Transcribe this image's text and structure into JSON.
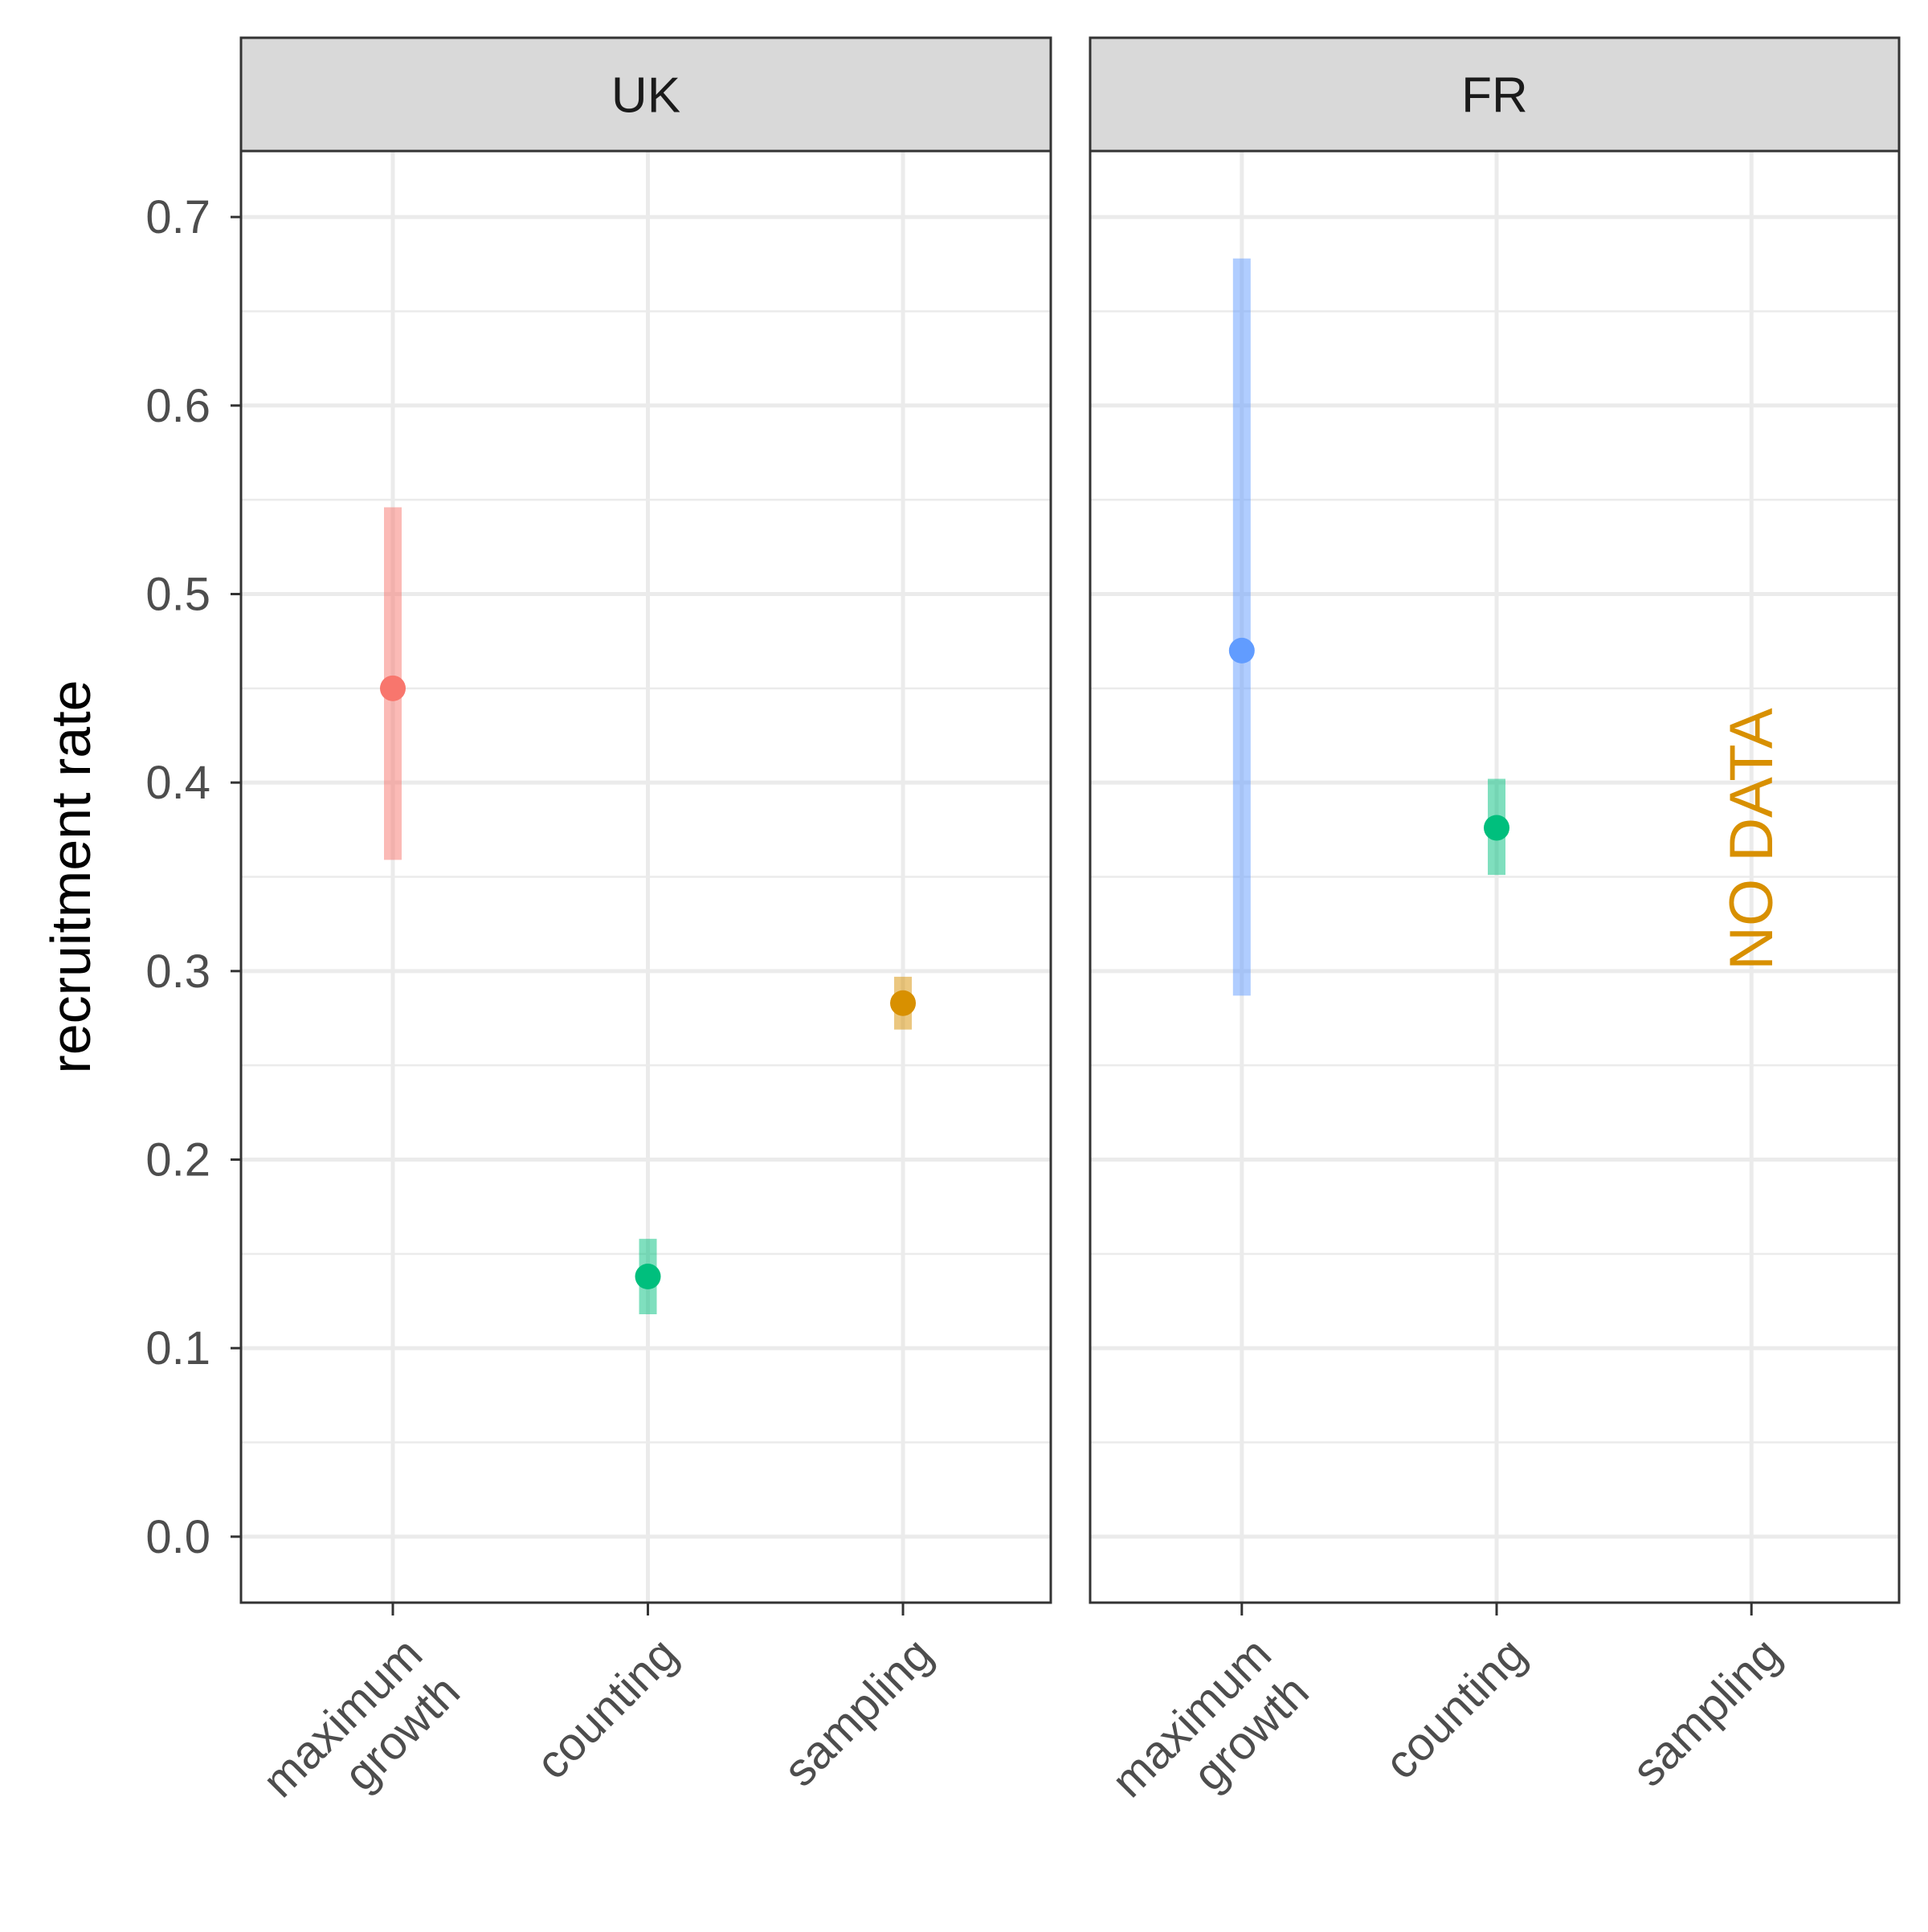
{
  "chart_data": {
    "type": "pointrange",
    "ylabel": "recruitment rate",
    "xlabel": "",
    "ylim": [
      -0.035,
      0.735
    ],
    "y_ticks": [
      0.0,
      0.1,
      0.2,
      0.3,
      0.4,
      0.5,
      0.6,
      0.7
    ],
    "y_tick_labels": [
      "0.0",
      "0.1",
      "0.2",
      "0.3",
      "0.4",
      "0.5",
      "0.6",
      "0.7"
    ],
    "categories": [
      "maximum\ngrowth",
      "counting",
      "sampling"
    ],
    "grid": true,
    "legend": "none",
    "panels": [
      {
        "title": "UK",
        "points": [
          {
            "category": "maximum\ngrowth",
            "y": 0.45,
            "ymin": 0.359,
            "ymax": 0.546,
            "color": "#F8766D"
          },
          {
            "category": "counting",
            "y": 0.138,
            "ymin": 0.118,
            "ymax": 0.158,
            "color": "#00BF7D"
          },
          {
            "category": "sampling",
            "y": 0.283,
            "ymin": 0.269,
            "ymax": 0.297,
            "color": "#D89000"
          }
        ],
        "annotation": ""
      },
      {
        "title": "FR",
        "points": [
          {
            "category": "maximum\ngrowth",
            "y": 0.47,
            "ymin": 0.287,
            "ymax": 0.678,
            "color": "#619CFF"
          },
          {
            "category": "counting",
            "y": 0.376,
            "ymin": 0.351,
            "ymax": 0.402,
            "color": "#00BF7D"
          }
        ],
        "annotation": "NO DATA",
        "annotation_category": "sampling",
        "annotation_y": 0.37,
        "annotation_color": "#D89000"
      }
    ]
  }
}
